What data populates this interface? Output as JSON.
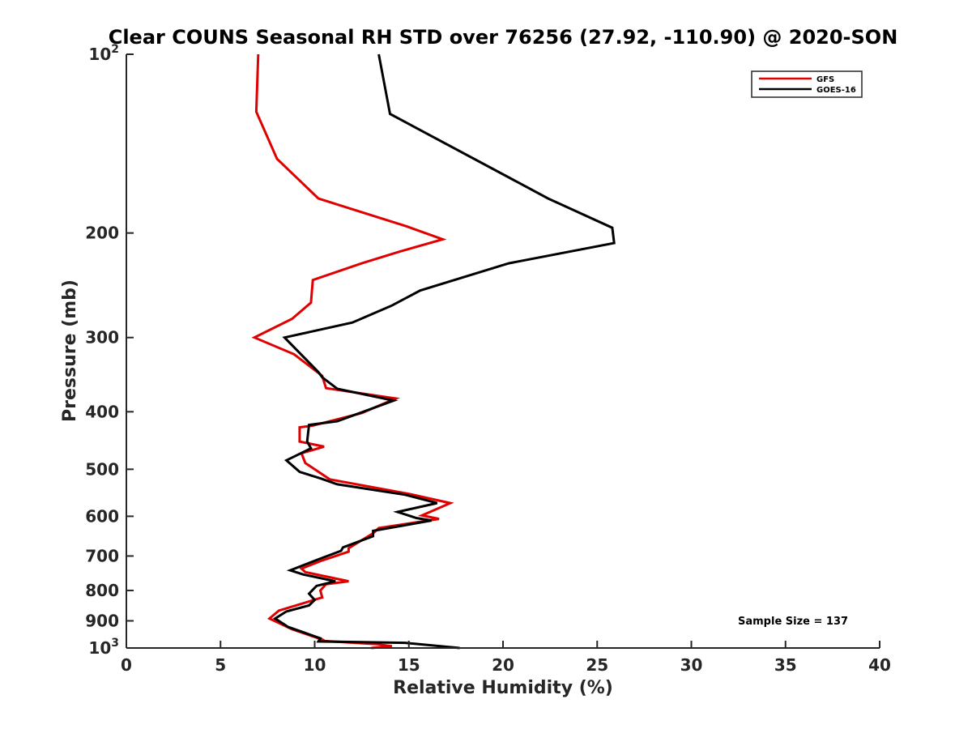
{
  "chart_data": {
    "type": "line",
    "title": "Clear COUNS Seasonal RH STD over 76256 (27.92, -110.90) @ 2020-SON",
    "xlabel": "Relative Humidity (%)",
    "ylabel": "Pressure (mb)",
    "xlim": [
      0,
      40
    ],
    "ylim": [
      100,
      1000
    ],
    "y_scale": "log",
    "y_reversed": true,
    "grid": false,
    "legend_position": "top-right",
    "x_ticks": [
      {
        "value": 0,
        "label": "0"
      },
      {
        "value": 5,
        "label": "5"
      },
      {
        "value": 10,
        "label": "10"
      },
      {
        "value": 15,
        "label": "15"
      },
      {
        "value": 20,
        "label": "20"
      },
      {
        "value": 25,
        "label": "25"
      },
      {
        "value": 30,
        "label": "30"
      },
      {
        "value": 35,
        "label": "35"
      },
      {
        "value": 40,
        "label": "40"
      }
    ],
    "y_ticks": [
      {
        "value": 100,
        "base": "10",
        "exp": "2"
      },
      {
        "value": 200,
        "base": "200",
        "exp": ""
      },
      {
        "value": 300,
        "base": "300",
        "exp": ""
      },
      {
        "value": 400,
        "base": "400",
        "exp": ""
      },
      {
        "value": 500,
        "base": "500",
        "exp": ""
      },
      {
        "value": 600,
        "base": "600",
        "exp": ""
      },
      {
        "value": 700,
        "base": "700",
        "exp": ""
      },
      {
        "value": 800,
        "base": "800",
        "exp": ""
      },
      {
        "value": 900,
        "base": "900",
        "exp": ""
      },
      {
        "value": 1000,
        "base": "10",
        "exp": "3"
      }
    ],
    "series": [
      {
        "name": "GFS",
        "color": "#e00000",
        "points": [
          [
            7.0,
            100
          ],
          [
            6.9,
            125
          ],
          [
            8.0,
            150
          ],
          [
            10.2,
            175
          ],
          [
            14.9,
            195
          ],
          [
            16.8,
            205
          ],
          [
            14.5,
            215
          ],
          [
            12.5,
            225
          ],
          [
            9.9,
            240
          ],
          [
            9.8,
            262
          ],
          [
            8.8,
            279
          ],
          [
            6.8,
            300
          ],
          [
            8.9,
            320
          ],
          [
            10.4,
            348
          ],
          [
            10.6,
            365
          ],
          [
            14.3,
            380
          ],
          [
            12.5,
            402
          ],
          [
            9.9,
            422
          ],
          [
            9.2,
            425
          ],
          [
            9.2,
            449
          ],
          [
            10.5,
            458
          ],
          [
            9.3,
            470
          ],
          [
            9.5,
            488
          ],
          [
            10.8,
            520
          ],
          [
            15.0,
            550
          ],
          [
            17.2,
            570
          ],
          [
            15.7,
            598
          ],
          [
            16.6,
            606
          ],
          [
            13.4,
            628
          ],
          [
            13.1,
            641
          ],
          [
            11.8,
            679
          ],
          [
            11.8,
            688
          ],
          [
            10.4,
            712
          ],
          [
            9.3,
            735
          ],
          [
            9.5,
            745
          ],
          [
            11.8,
            772
          ],
          [
            10.6,
            781
          ],
          [
            10.3,
            800
          ],
          [
            10.4,
            822
          ],
          [
            8.1,
            865
          ],
          [
            7.6,
            892
          ],
          [
            8.8,
            930
          ],
          [
            10.4,
            968
          ],
          [
            10.3,
            972
          ],
          [
            13.3,
            985
          ],
          [
            14.1,
            993
          ],
          [
            13.0,
            1000
          ]
        ]
      },
      {
        "name": "GOES-16",
        "color": "#000000",
        "points": [
          [
            13.4,
            100
          ],
          [
            14.0,
            126
          ],
          [
            19.3,
            155
          ],
          [
            22.4,
            175
          ],
          [
            25.8,
            196
          ],
          [
            25.9,
            208
          ],
          [
            20.3,
            225
          ],
          [
            15.6,
            250
          ],
          [
            14.1,
            265
          ],
          [
            12.0,
            283
          ],
          [
            8.4,
            300
          ],
          [
            10.2,
            343
          ],
          [
            10.4,
            350
          ],
          [
            11.2,
            366
          ],
          [
            14.2,
            383
          ],
          [
            12.3,
            403
          ],
          [
            11.2,
            415
          ],
          [
            9.7,
            421
          ],
          [
            9.6,
            449
          ],
          [
            9.8,
            461
          ],
          [
            8.5,
            483
          ],
          [
            9.2,
            505
          ],
          [
            10.3,
            518
          ],
          [
            11.2,
            530
          ],
          [
            14.8,
            552
          ],
          [
            16.5,
            570
          ],
          [
            14.4,
            590
          ],
          [
            15.4,
            604
          ],
          [
            16.2,
            610
          ],
          [
            13.1,
            635
          ],
          [
            13.1,
            648
          ],
          [
            11.5,
            677
          ],
          [
            11.4,
            686
          ],
          [
            10.3,
            707
          ],
          [
            8.7,
            740
          ],
          [
            9.4,
            752
          ],
          [
            11.1,
            772
          ],
          [
            10.1,
            786
          ],
          [
            9.7,
            810
          ],
          [
            10.0,
            830
          ],
          [
            9.7,
            848
          ],
          [
            8.5,
            868
          ],
          [
            7.9,
            892
          ],
          [
            8.6,
            922
          ],
          [
            10.3,
            963
          ],
          [
            10.2,
            975
          ],
          [
            14.8,
            980
          ],
          [
            17.7,
            1000
          ]
        ]
      }
    ],
    "annotation": "Sample Size = 137"
  }
}
